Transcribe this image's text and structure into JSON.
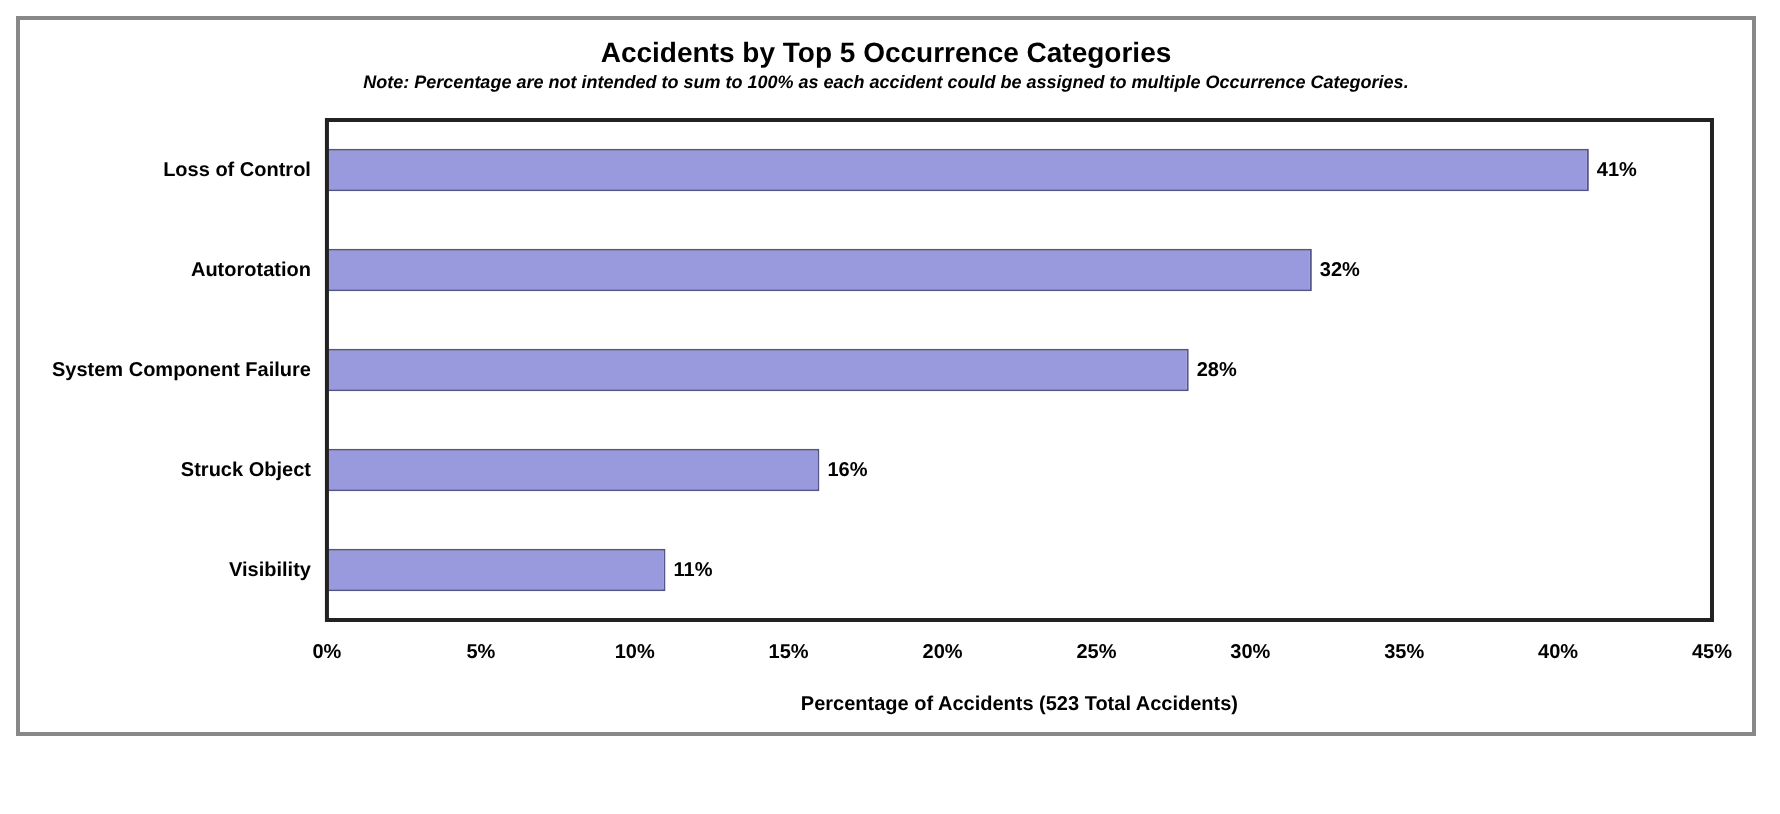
{
  "chart_data": {
    "type": "bar",
    "orientation": "horizontal",
    "title": "Accidents by Top 5 Occurrence Categories",
    "subtitle": "Note:  Percentage are not intended to sum to 100% as each accident could be assigned to multiple Occurrence Categories.",
    "xlabel": "Percentage of Accidents (523 Total Accidents)",
    "categories": [
      "Loss of Control",
      "Autorotation",
      "System Component Failure",
      "Struck Object",
      "Visibility"
    ],
    "values": [
      41,
      32,
      28,
      16,
      11
    ],
    "value_labels": [
      "41%",
      "32%",
      "28%",
      "16%",
      "11%"
    ],
    "color": "#9999dd",
    "xlim": [
      0,
      45
    ],
    "xticks": [
      {
        "value": 0,
        "label": "0%"
      },
      {
        "value": 5,
        "label": "5%"
      },
      {
        "value": 10,
        "label": "10%"
      },
      {
        "value": 15,
        "label": "15%"
      },
      {
        "value": 20,
        "label": "20%"
      },
      {
        "value": 25,
        "label": "25%"
      },
      {
        "value": 30,
        "label": "30%"
      },
      {
        "value": 35,
        "label": "35%"
      },
      {
        "value": 40,
        "label": "40%"
      },
      {
        "value": 45,
        "label": "45%"
      }
    ],
    "grid": false,
    "legend": false
  }
}
